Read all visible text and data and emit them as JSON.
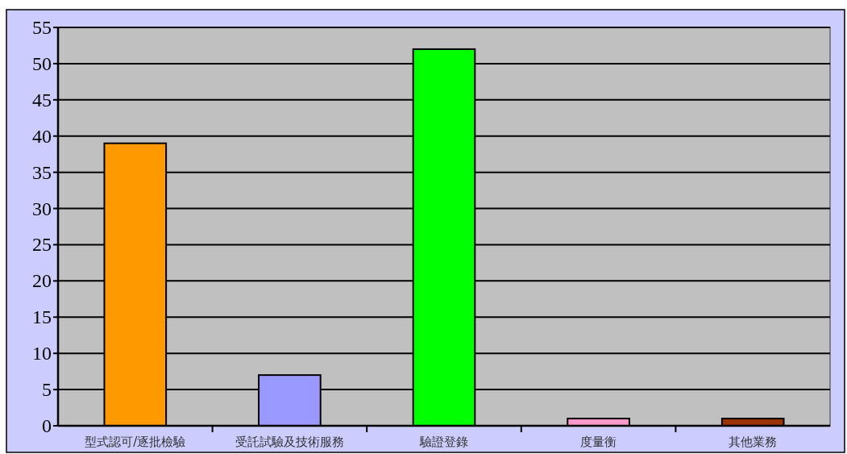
{
  "chart_data": {
    "type": "bar",
    "categories": [
      "型式認可/逐批檢驗",
      "受託試驗及技術服務",
      "驗證登錄",
      "度量衡",
      "其他業務"
    ],
    "values": [
      39,
      7,
      52,
      1,
      1
    ],
    "colors": [
      "#ff9900",
      "#9999ff",
      "#00ff00",
      "#ff99cc",
      "#993300"
    ],
    "ylim": [
      0,
      55
    ],
    "yticks": [
      0,
      5,
      10,
      15,
      20,
      25,
      30,
      35,
      40,
      45,
      50,
      55
    ],
    "grid": "y"
  }
}
